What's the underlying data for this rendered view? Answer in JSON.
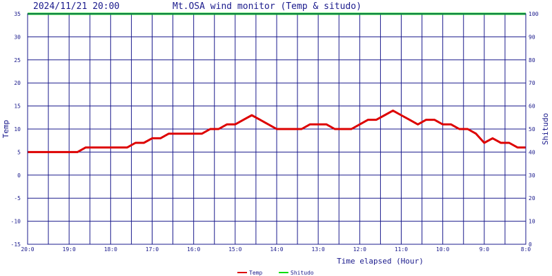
{
  "header": {
    "timestamp": "2024/11/21 20:00",
    "title": "Mt.OSA wind monitor (Temp & situdo)"
  },
  "chart_data": {
    "type": "line",
    "xlabel": "Time elapsed (Hour)",
    "ylabel_left": "Temp",
    "ylabel_right": "Shitudo",
    "ylim_left": [
      -15,
      35
    ],
    "yticks_left": [
      35,
      30,
      25,
      20,
      15,
      10,
      5,
      0,
      -5,
      -10,
      -15
    ],
    "ylim_right": [
      0,
      100
    ],
    "yticks_right": [
      100,
      90,
      80,
      70,
      60,
      50,
      40,
      30,
      20,
      10,
      0
    ],
    "x_tick_labels": [
      "20:0",
      "19:0",
      "18:0",
      "17:0",
      "16:0",
      "15:0",
      "14:0",
      "13:0",
      "12:0",
      "11:0",
      "10:0",
      "9:0",
      "8:0"
    ],
    "x_unit_per_major": 4,
    "x_range": [
      0,
      48
    ],
    "grid": true,
    "legend_position": "bottom-center",
    "series": [
      {
        "name": "Temp",
        "axis": "left",
        "color": "#dd0000",
        "values": [
          5,
          5,
          5,
          5,
          5,
          5,
          5,
          6,
          6,
          6,
          6,
          6,
          6,
          7,
          7,
          8,
          8,
          9,
          9,
          9,
          9,
          9,
          10,
          10,
          11,
          11,
          12,
          13,
          12,
          11,
          10,
          10,
          10,
          10,
          11,
          11,
          11,
          10,
          10,
          10,
          11,
          12,
          12,
          13,
          14,
          13,
          12,
          11,
          12,
          12,
          11,
          11,
          10,
          10,
          9,
          7,
          8,
          7,
          7,
          6,
          6
        ]
      },
      {
        "name": "Shitudo",
        "axis": "right",
        "color": "#00dd00",
        "values": [
          100,
          100
        ]
      }
    ]
  }
}
